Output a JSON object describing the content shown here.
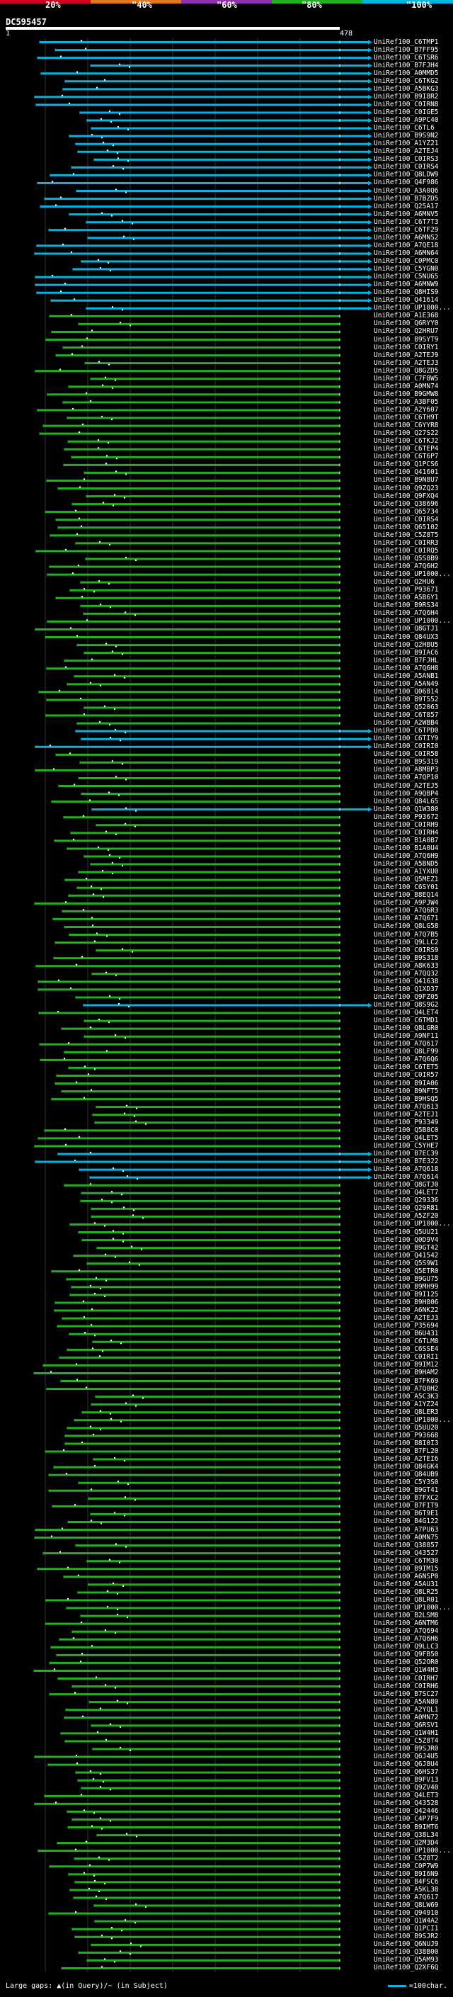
{
  "identity_scale": {
    "labels": [
      "20%",
      "\"40%",
      "\"60%",
      "\"80%",
      "\"100%"
    ],
    "colors": [
      "#d40020",
      "#e07820",
      "#9030b0",
      "#20b020",
      "#00b5e2"
    ]
  },
  "query": {
    "id": "DC595457",
    "start": "1",
    "end": "478"
  },
  "colors": {
    "cyan": "#00b5e2",
    "green": "#22b01e",
    "magenta": "#b020b0",
    "dot": "#ffffff"
  },
  "hits": [
    "UniRef100_C6TMP1",
    "UniRef100_B7FF95",
    "UniRef100_C6TSR6",
    "UniRef100_B7FJH4",
    "UniRef100_A0MMD5",
    "UniRef100_C6TKG2",
    "UniRef100_A5BKG3",
    "UniRef100_B9I8R2",
    "UniRef100_C0IRN8",
    "UniRef100_C0IGE5",
    "UniRef100_A9PC40",
    "UniRef100_C6TL6",
    "UniRef100_B9S9N2",
    "UniRef100_A1YZ21",
    "UniRef100_A2TEJ4",
    "UniRef100_C0IRS3",
    "UniRef100_C0IRS4",
    "UniRef100_Q8LDW9",
    "UniRef100_Q4F986",
    "UniRef100_A3A0Q6",
    "UniRef100_B7BZD5",
    "UniRef100_Q25A17",
    "UniRef100_A6MNV5",
    "UniRef100_C6T7T3",
    "UniRef100_C6TF29",
    "UniRef100_A6MNS2",
    "UniRef100_A7QE18",
    "UniRef100_A6MN64",
    "UniRef100_C0PMC0",
    "UniRef100_C5YGN0",
    "UniRef100_C5NU65",
    "UniRef100_A6MNW9",
    "UniRef100_Q8HIS9",
    "UniRef100_Q41614",
    "UniRef100_UP1000...",
    "UniRef100_A1E368",
    "UniRef100_Q6RYY0",
    "UniRef100_Q2HRU7",
    "UniRef100_B9SYT9",
    "UniRef100_C0IRY1",
    "UniRef100_A2TEJ9",
    "UniRef100_A2TEJ3",
    "UniRef100_Q8GZD5",
    "UniRef100_C7F8W5",
    "UniRef100_A0MN74",
    "UniRef100_B9GMW8",
    "UniRef100_A3BF05",
    "UniRef100_A2Y607",
    "UniRef100_C6TH9T",
    "UniRef100_C6YYR8",
    "UniRef100_Q27S22",
    "UniRef100_C6TKJ2",
    "UniRef100_C6TEP4",
    "UniRef100_C6T6P7",
    "UniRef100_Q1PCS6",
    "UniRef100_Q41601",
    "UniRef100_B9N8U7",
    "UniRef100_Q9ZQ23",
    "UniRef100_Q9FXQ4",
    "UniRef100_Q38696",
    "UniRef100_Q65734",
    "UniRef100_C0IRS4",
    "UniRef100_Q65102",
    "UniRef100_C5Z8T5",
    "UniRef100_C0IRR3",
    "UniRef100_C0IRQ5",
    "UniRef100_Q5S8B9",
    "UniRef100_A7Q6H2",
    "UniRef100_UP1000...",
    "UniRef100_Q2HU6",
    "UniRef100_P93671",
    "UniRef100_A5B6Y1",
    "UniRef100_B9RS34",
    "UniRef100_A7Q6H4",
    "UniRef100_UP1000...",
    "UniRef100_Q8GTJ1",
    "UniRef100_Q84UX3",
    "UniRef100_Q2HBU5",
    "UniRef100_B9IAC6",
    "UniRef100_B7FJHL",
    "UniRef100_A7Q6H8",
    "UniRef100_A5ANB1",
    "UniRef100_A5AN49",
    "UniRef100_Q06814",
    "UniRef100_B9T552",
    "UniRef100_Q52063",
    "UniRef100_C6T857",
    "UniRef100_A2WBB4",
    "UniRef100_C6TPD0",
    "UniRef100_C6TIY9",
    "UniRef100_C0IRI0",
    "UniRef100_C0IR58",
    "UniRef100_B9S319",
    "UniRef100_A8MBP3",
    "UniRef100_A7QP10",
    "UniRef100_A2TEJ5",
    "UniRef100_A9QBP4",
    "UniRef100_Q84L65",
    "UniRef100_Q1W380",
    "UniRef100_P93672",
    "UniRef100_C0IRH9",
    "UniRef100_C0IRH4",
    "UniRef100_B1A0B7",
    "UniRef100_B1A0U4",
    "UniRef100_A7Q6H9",
    "UniRef100_A5BND5",
    "UniRef100_A1YXU0",
    "UniRef100_Q5MEZ1",
    "UniRef100_C6SY01",
    "UniRef100_B8EQ14",
    "UniRef100_A9PJW4",
    "UniRef100_A7Q6R3",
    "UniRef100_A7Q671",
    "UniRef100_Q8LG58",
    "UniRef100_A7Q7B5",
    "UniRef100_Q9LLC2",
    "UniRef100_C0IRS9",
    "UniRef100_B9S318",
    "UniRef100_A8K633",
    "UniRef100_A7QQ32",
    "UniRef100_Q41638",
    "UniRef100_Q1XD37",
    "UniRef100_Q9FZ05",
    "UniRef100_Q8S9G2",
    "UniRef100_Q4LET4",
    "UniRef100_C6TMD1",
    "UniRef100_Q8LGR0",
    "UniRef100_A9NF11",
    "UniRef100_A7Q617",
    "UniRef100_Q8LF99",
    "UniRef100_A7Q6Q6",
    "UniRef100_C6TET5",
    "UniRef100_C0IR57",
    "UniRef100_B9IA06",
    "UniRef100_B9NFT5",
    "UniRef100_B9HSQ5",
    "UniRef100_A7Q613",
    "UniRef100_A2TEJ1",
    "UniRef100_P93349",
    "UniRef100_Q5B8C0",
    "UniRef100_Q4LET5",
    "UniRef100_C5YHE7",
    "UniRef100_B7EC39",
    "UniRef100_B7E322",
    "UniRef100_A7Q618",
    "UniRef100_A7Q614",
    "UniRef100_Q8GTJ0",
    "UniRef100_Q4LET7",
    "UniRef100_Q29336",
    "UniRef100_Q29R81",
    "UniRef100_A5ZF20",
    "UniRef100_UP1000...",
    "UniRef100_Q5UU21",
    "UniRef100_Q0D9V4",
    "UniRef100_B9GT42",
    "UniRef100_Q41542",
    "UniRef100_Q5S9W1",
    "UniRef100_Q5ETR0",
    "UniRef100_B9GU75",
    "UniRef100_B9MH99",
    "UniRef100_B9I125",
    "UniRef100_B9H806",
    "UniRef100_A6NK22",
    "UniRef100_A2TEJ3",
    "UniRef100_P35694",
    "UniRef100_B6U431",
    "UniRef100_C6TLM8",
    "UniRef100_C6SSE4",
    "UniRef100_C0IRI1",
    "UniRef100_B9IM12",
    "UniRef100_B9HAM2",
    "UniRef100_B7FK69",
    "UniRef100_A7Q0H2",
    "UniRef100_A5C3K3",
    "UniRef100_A1YZ24",
    "UniRef100_Q8LER3",
    "UniRef100_UP1000...",
    "UniRef100_Q5UU20",
    "UniRef100_P93668",
    "UniRef100_B8I0I3",
    "UniRef100_B7FL20",
    "UniRef100_A2TEI6",
    "UniRef100_Q84GK4",
    "UniRef100_Q84UB9",
    "UniRef100_C5Y3S0",
    "UniRef100_B9GT41",
    "UniRef100_B7FXC2",
    "UniRef100_B7FIT9",
    "UniRef100_B6T9E1",
    "UniRef100_B4G122",
    "UniRef100_A7PU63",
    "UniRef100_A0MN75",
    "UniRef100_Q38857",
    "UniRef100_Q43527",
    "UniRef100_C6TM30",
    "UniRef100_B9IM15",
    "UniRef100_A6NSP0",
    "UniRef100_A5AU31",
    "UniRef100_Q8LR25",
    "UniRef100_Q8LR01",
    "UniRef100_UP1000...",
    "UniRef100_B2LSM8",
    "UniRef100_A6NTM6",
    "UniRef100_A7Q694",
    "UniRef100_A7Q6H6",
    "UniRef100_Q9LLC3",
    "UniRef100_Q9FB50",
    "UniRef100_Q52OR0",
    "UniRef100_Q1W4H3",
    "UniRef100_C0IRH7",
    "UniRef100_C0IRH6",
    "UniRef100_B7SC27",
    "UniRef100_A5AN80",
    "UniRef100_A2YQL1",
    "UniRef100_A0MN72",
    "UniRef100_Q6RSV1",
    "UniRef100_Q1W4H1",
    "UniRef100_C5Z8T4",
    "UniRef100_B9SJR0",
    "UniRef100_Q6J4U5",
    "UniRef100_Q6J8U4",
    "UniRef100_Q6HS37",
    "UniRef100_B9FV13",
    "UniRef100_Q9ZV40",
    "UniRef100_Q4LET3",
    "UniRef100_Q43528",
    "UniRef100_Q42446",
    "UniRef100_C4P7F9",
    "UniRef100_B9IMT6",
    "UniRef100_Q38L34",
    "UniRef100_Q2M3D4",
    "UniRef100_UP1000...",
    "UniRef100_C5Z8T2",
    "UniRef100_C0P7W9",
    "UniRef100_B9I6N9",
    "UniRef100_B4FSC6",
    "UniRef100_A5KL38",
    "UniRef100_A7Q617",
    "UniRef100_Q8LW69",
    "UniRef100_Q94910",
    "UniRef100_Q1W4A2",
    "UniRef100_Q1PCI1",
    "UniRef100_B9SJR2",
    "UniRef100_Q6NUJ9",
    "UniRef100_Q38B00",
    "UniRef100_Q5AM93",
    "UniRef100_Q2XF6Q"
  ],
  "legend": {
    "left": "Large gaps: ▲(in Query)/~ (in Subject)",
    "right": "=100char."
  }
}
